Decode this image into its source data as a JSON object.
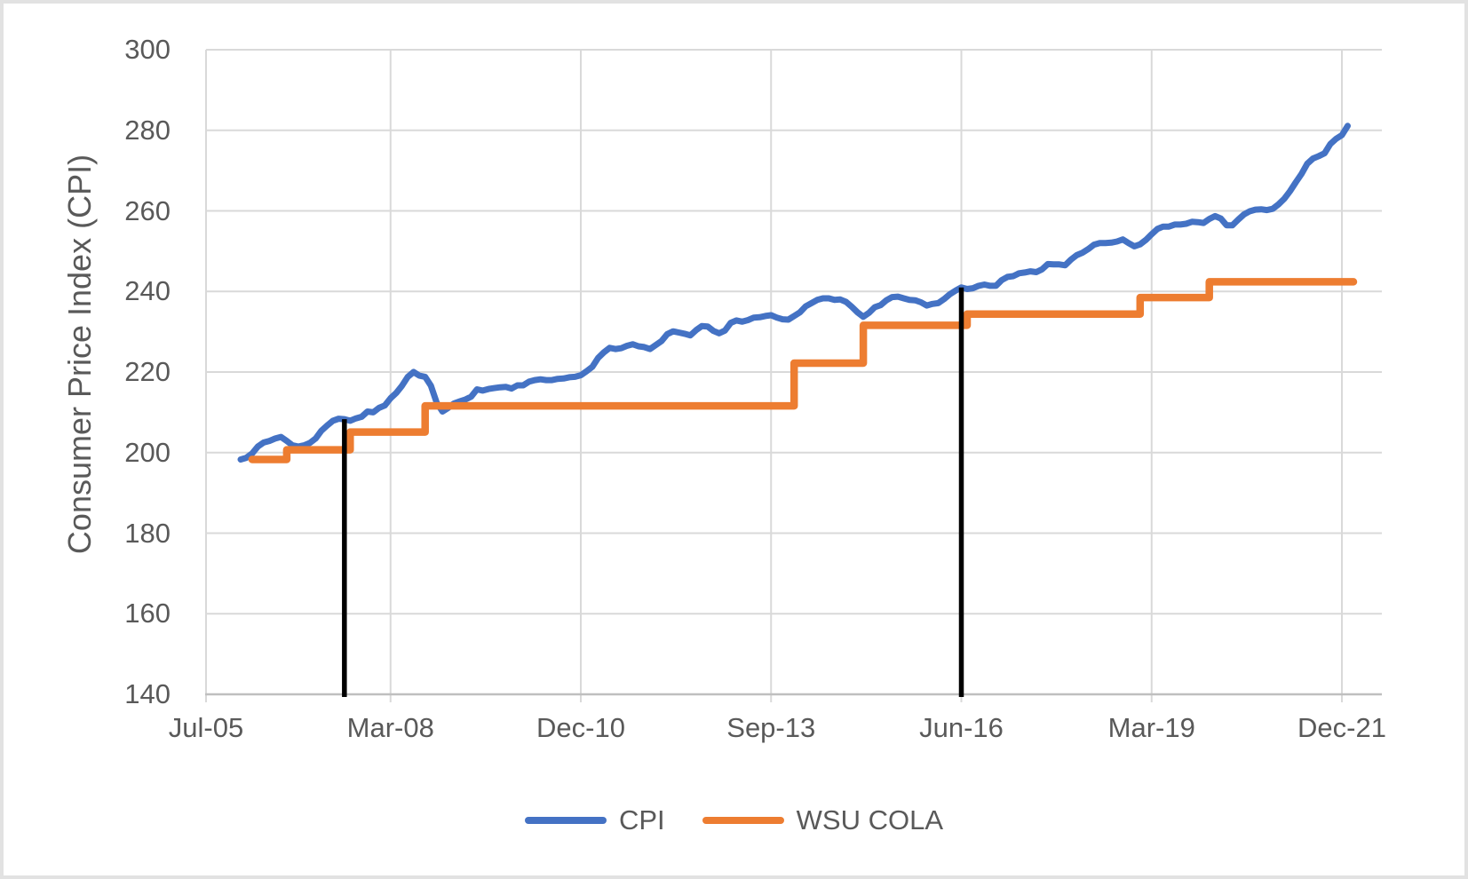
{
  "window": {
    "background": "#FFFFFF",
    "border_color": "#E2E2E2"
  },
  "styles": {
    "gridline_color": "#D9D9D9",
    "axis_line_color": "#BFBFBF",
    "text_color": "#595959",
    "marker_line_color": "#000000",
    "cpi_color": "#4472C4",
    "cola_color": "#ED7D31"
  },
  "y_axis": {
    "title": "Consumer Price Index (CPI)",
    "tick_labels": [
      "140",
      "160",
      "180",
      "200",
      "220",
      "240",
      "260",
      "280",
      "300"
    ]
  },
  "x_axis": {
    "tick_labels": [
      "Jul-05",
      "Mar-08",
      "Dec-10",
      "Sep-13",
      "Jun-16",
      "Mar-19",
      "Dec-21"
    ]
  },
  "legend": {
    "items": [
      {
        "label": "CPI",
        "color": "#4472C4"
      },
      {
        "label": "WSU COLA",
        "color": "#ED7D31"
      }
    ]
  },
  "chart_data": {
    "type": "line",
    "title": "",
    "xlabel": "",
    "ylabel": "Consumer Price Index (CPI)",
    "ylim": [
      140,
      300
    ],
    "y_tick_step": 20,
    "grid": true,
    "legend_position": "bottom",
    "x_axis_note": "monthly categories; month_index 0 = Jul-2005",
    "x_tick_labels": [
      "Jul-05",
      "Mar-08",
      "Dec-10",
      "Sep-13",
      "Jun-16",
      "Mar-19",
      "Dec-21"
    ],
    "x_tick_month_index": [
      0,
      32,
      65,
      98,
      131,
      164,
      197
    ],
    "series": [
      {
        "name": "CPI",
        "type": "line",
        "color": "#4472C4",
        "start_label": "Jan-06",
        "end_label": "Jan-22",
        "start_month_index": 6,
        "values": [
          198.3,
          198.7,
          199.8,
          201.5,
          202.5,
          202.9,
          203.5,
          203.9,
          202.9,
          201.8,
          201.5,
          201.8,
          202.4,
          203.5,
          205.4,
          206.7,
          207.9,
          208.4,
          208.3,
          207.9,
          208.5,
          208.9,
          210.2,
          210.0,
          211.1,
          211.7,
          213.5,
          214.8,
          216.6,
          218.8,
          220.0,
          219.1,
          218.8,
          216.6,
          212.4,
          210.2,
          211.1,
          212.2,
          212.7,
          213.2,
          213.9,
          215.7,
          215.4,
          215.8,
          216.0,
          216.2,
          216.3,
          215.9,
          216.7,
          216.7,
          217.6,
          218.0,
          218.2,
          218.0,
          218.0,
          218.3,
          218.4,
          218.7,
          218.8,
          219.2,
          220.2,
          221.3,
          223.5,
          224.9,
          226.0,
          225.7,
          225.9,
          226.5,
          226.9,
          226.4,
          226.2,
          225.7,
          226.7,
          227.7,
          229.4,
          230.1,
          229.8,
          229.5,
          229.1,
          230.4,
          231.4,
          231.3,
          230.2,
          229.6,
          230.3,
          232.2,
          232.8,
          232.5,
          232.9,
          233.5,
          233.6,
          233.9,
          234.1,
          233.5,
          233.1,
          233.0,
          233.9,
          234.8,
          236.3,
          237.1,
          237.9,
          238.3,
          238.3,
          237.9,
          238.0,
          237.4,
          236.2,
          234.8,
          233.7,
          234.7,
          236.1,
          236.6,
          237.8,
          238.6,
          238.7,
          238.3,
          237.9,
          237.8,
          237.3,
          236.5,
          236.9,
          237.1,
          238.1,
          239.3,
          240.2,
          241.0,
          240.6,
          240.8,
          241.4,
          241.7,
          241.4,
          241.4,
          242.8,
          243.6,
          243.8,
          244.5,
          244.7,
          245.0,
          244.8,
          245.5,
          246.8,
          246.7,
          246.7,
          246.5,
          247.9,
          249.0,
          249.6,
          250.5,
          251.6,
          252.0,
          252.0,
          252.1,
          252.4,
          252.9,
          252.0,
          251.2,
          251.7,
          252.8,
          254.2,
          255.5,
          256.1,
          256.1,
          256.6,
          256.6,
          256.8,
          257.3,
          257.2,
          257.0,
          258.0,
          258.7,
          258.1,
          256.4,
          256.4,
          257.8,
          259.1,
          259.9,
          260.3,
          260.4,
          260.2,
          260.5,
          261.6,
          263.0,
          264.9,
          267.1,
          269.2,
          271.7,
          273.0,
          273.6,
          274.3,
          276.6,
          277.9,
          278.8,
          281.1
        ]
      },
      {
        "name": "WSU COLA",
        "type": "step",
        "color": "#ED7D31",
        "start_month_index": 8,
        "end_month_index": 199,
        "steps": [
          {
            "month_index": 8,
            "label": "Mar-06",
            "value": 198.3
          },
          {
            "month_index": 14,
            "label": "Sep-06",
            "value": 200.7
          },
          {
            "month_index": 25,
            "label": "Aug-07",
            "value": 205.1
          },
          {
            "month_index": 38,
            "label": "Sep-08",
            "value": 211.6
          },
          {
            "month_index": 102,
            "label": "Jan-14",
            "value": 222.2
          },
          {
            "month_index": 114,
            "label": "Jan-15",
            "value": 231.6
          },
          {
            "month_index": 132,
            "label": "Jul-16",
            "value": 234.4
          },
          {
            "month_index": 162,
            "label": "Jan-19",
            "value": 238.5
          },
          {
            "month_index": 174,
            "label": "Jan-20",
            "value": 242.4
          }
        ]
      }
    ],
    "annotations": [
      {
        "type": "vline",
        "month_index": 24,
        "label": "Jul-07",
        "y_from": 140,
        "y_to": 208.3,
        "color": "#000000"
      },
      {
        "type": "vline",
        "month_index": 131,
        "label": "Jun-16",
        "y_from": 140,
        "y_to": 241.0,
        "color": "#000000"
      }
    ]
  }
}
